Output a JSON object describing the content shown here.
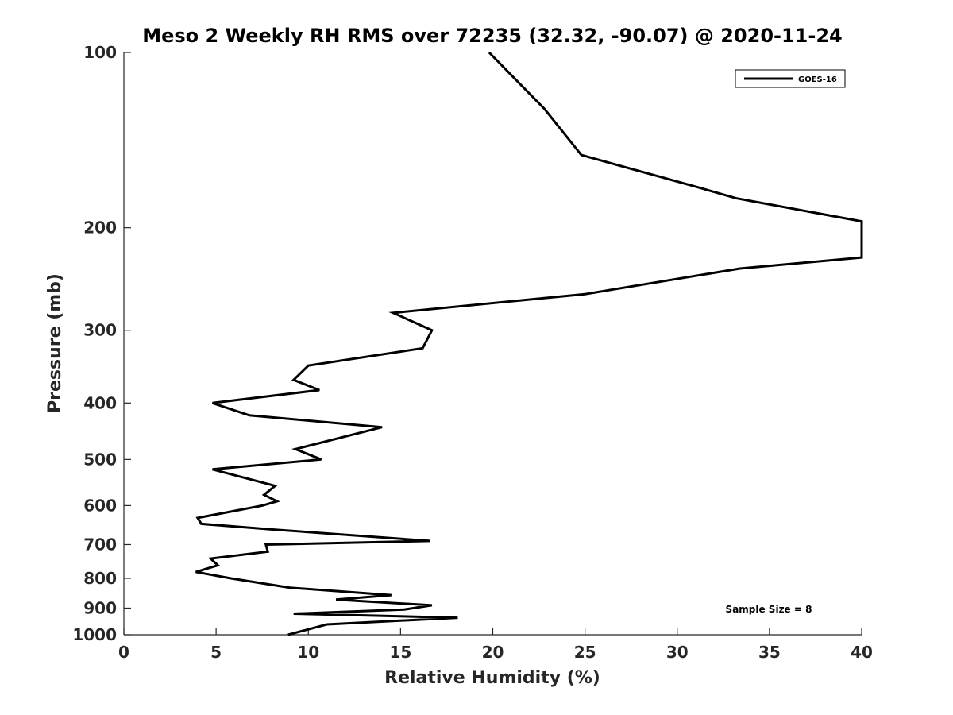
{
  "chart_data": {
    "type": "line",
    "title": "Meso 2 Weekly RH RMS over 72235 (32.32, -90.07) @ 2020-11-24",
    "xlabel": "Relative Humidity (%)",
    "ylabel": "Pressure (mb)",
    "xlim": [
      0,
      40
    ],
    "ylim": [
      100,
      1000
    ],
    "yscale": "log",
    "grid": false,
    "xticks": [
      0,
      5,
      10,
      15,
      20,
      25,
      30,
      35,
      40
    ],
    "xtick_labels": [
      "0",
      "5",
      "10",
      "15",
      "20",
      "25",
      "30",
      "35",
      "40"
    ],
    "yticks": [
      100,
      200,
      300,
      400,
      500,
      600,
      700,
      800,
      900,
      1000
    ],
    "ytick_labels": [
      "100",
      "200",
      "300",
      "400",
      "500",
      "600",
      "700",
      "800",
      "900",
      "1000"
    ],
    "legend": {
      "placement": "top-right",
      "entries": [
        "GOES-16"
      ]
    },
    "annotation": "Sample Size = 8",
    "series": [
      {
        "name": "GOES-16",
        "color": "#000000",
        "points": [
          [
            19.8,
            100
          ],
          [
            22.8,
            125
          ],
          [
            24.8,
            150
          ],
          [
            31.0,
            170
          ],
          [
            33.2,
            178
          ],
          [
            40.0,
            195
          ],
          [
            40.0,
            225
          ],
          [
            33.4,
            235
          ],
          [
            25.0,
            260
          ],
          [
            14.6,
            280
          ],
          [
            16.7,
            300
          ],
          [
            16.2,
            322
          ],
          [
            10.0,
            345
          ],
          [
            9.2,
            365
          ],
          [
            10.6,
            380
          ],
          [
            4.8,
            400
          ],
          [
            6.8,
            420
          ],
          [
            14.0,
            440
          ],
          [
            9.3,
            480
          ],
          [
            10.7,
            500
          ],
          [
            4.8,
            520
          ],
          [
            8.2,
            555
          ],
          [
            7.6,
            575
          ],
          [
            8.3,
            590
          ],
          [
            7.5,
            600
          ],
          [
            4.0,
            630
          ],
          [
            4.2,
            645
          ],
          [
            8.2,
            660
          ],
          [
            16.6,
            690
          ],
          [
            7.7,
            700
          ],
          [
            7.8,
            720
          ],
          [
            4.7,
            740
          ],
          [
            5.1,
            760
          ],
          [
            3.9,
            780
          ],
          [
            5.8,
            800
          ],
          [
            9.0,
            830
          ],
          [
            14.5,
            855
          ],
          [
            11.5,
            870
          ],
          [
            16.7,
            890
          ],
          [
            15.2,
            905
          ],
          [
            9.2,
            920
          ],
          [
            18.1,
            935
          ],
          [
            11.0,
            960
          ],
          [
            8.9,
            1000
          ]
        ]
      }
    ]
  }
}
